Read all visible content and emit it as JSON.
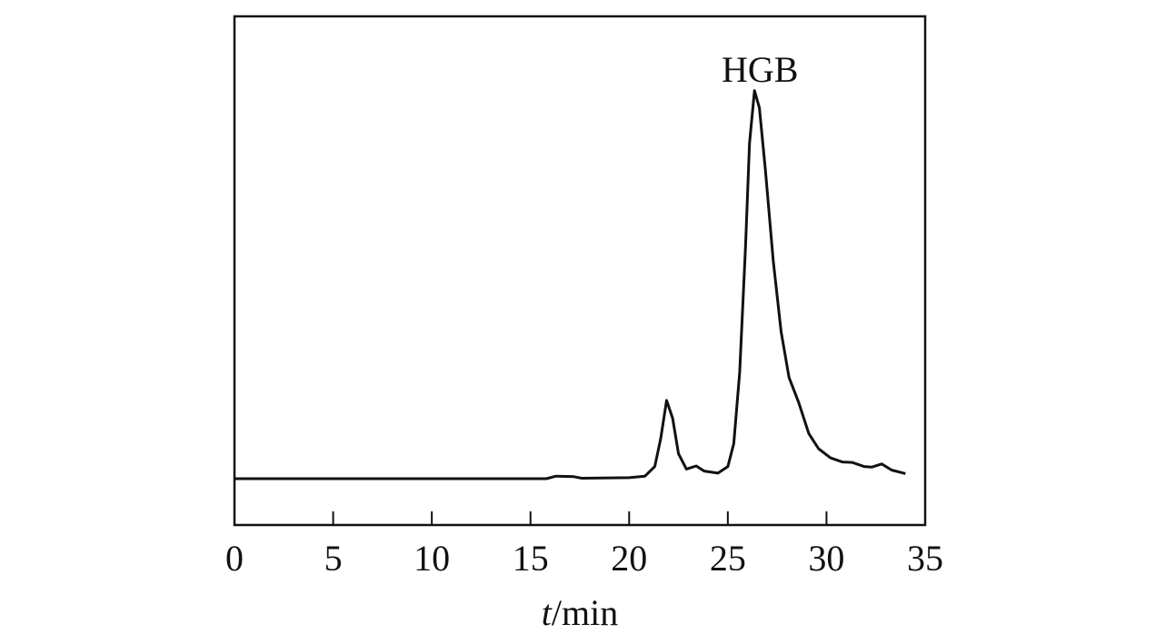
{
  "chart_data": {
    "type": "line",
    "x_label": "t/min",
    "annotations": [
      "HGB"
    ],
    "x": [
      0,
      15.8,
      16.3,
      17.2,
      17.6,
      20,
      20.8,
      21.3,
      21.6,
      21.9,
      22.2,
      22.5,
      22.9,
      23.4,
      23.8,
      24.5,
      25.0,
      25.3,
      25.6,
      25.9,
      26.1,
      26.35,
      26.6,
      26.9,
      27.3,
      27.7,
      28.1,
      28.6,
      29.1,
      29.6,
      30.2,
      30.8,
      31.3,
      31.9,
      32.3,
      32.8,
      33.3,
      34
    ],
    "series": [
      {
        "color": "#111111",
        "values": [
          9.1,
          9.1,
          9.6,
          9.5,
          9.2,
          9.3,
          9.6,
          11.5,
          17,
          24.5,
          21,
          14,
          11,
          11.6,
          10.6,
          10.2,
          11.5,
          16,
          30,
          55,
          75,
          85.4,
          82,
          70,
          52,
          38,
          29,
          24,
          18,
          15,
          13.2,
          12.4,
          12.3,
          11.5,
          11.4,
          12,
          10.8,
          10.1
        ]
      }
    ],
    "xlim": [
      0,
      35
    ],
    "xticks": [
      0,
      5,
      10,
      15,
      20,
      25,
      30,
      35
    ],
    "ylim": [
      0,
      100
    ]
  }
}
